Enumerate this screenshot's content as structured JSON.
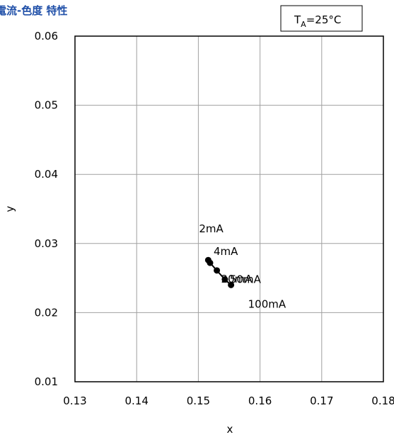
{
  "chart_data": {
    "type": "scatter",
    "title": "電流-色度 特性",
    "condition": {
      "main": "T",
      "sub": "A",
      "rest": "=25°C"
    },
    "xlabel": "x",
    "ylabel": "y",
    "xlim": [
      0.13,
      0.18
    ],
    "ylim": [
      0.01,
      0.06
    ],
    "x_ticks": [
      "0.13",
      "0.14",
      "0.15",
      "0.16",
      "0.17",
      "0.18"
    ],
    "y_ticks": [
      "0.01",
      "0.02",
      "0.03",
      "0.04",
      "0.05",
      "0.06"
    ],
    "grid": true,
    "series": [
      {
        "points": [
          {
            "x": 0.1516,
            "y": 0.0276,
            "label": "2mA"
          },
          {
            "x": 0.1519,
            "y": 0.0272,
            "label": "4mA"
          },
          {
            "x": 0.153,
            "y": 0.0261,
            "label": "20mA"
          },
          {
            "x": 0.1543,
            "y": 0.0248,
            "label": "50mA"
          },
          {
            "x": 0.1553,
            "y": 0.024,
            "label": "100mA"
          }
        ],
        "connected": true,
        "color": "#000000"
      }
    ]
  }
}
